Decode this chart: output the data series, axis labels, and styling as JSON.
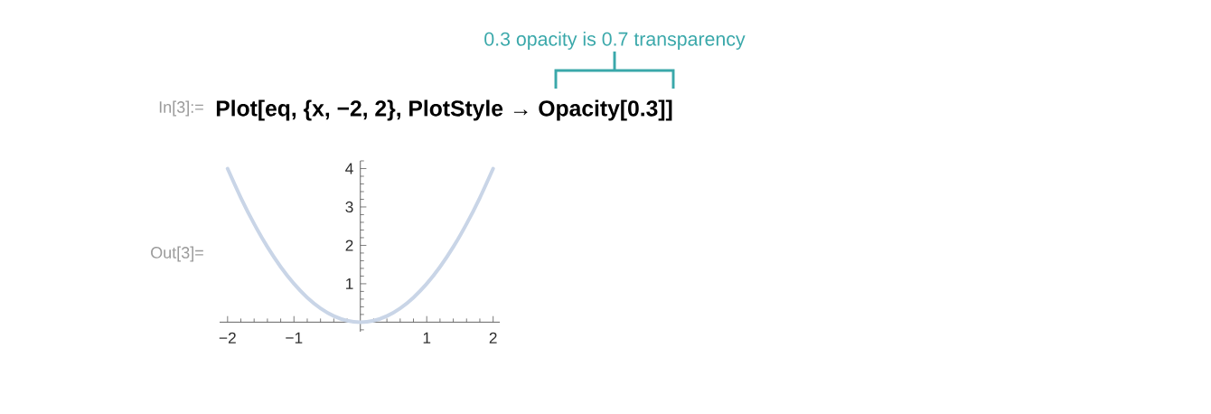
{
  "chart_data": {
    "type": "line",
    "x": [
      -2,
      -1.8,
      -1.6,
      -1.4,
      -1.2,
      -1,
      -0.8,
      -0.6,
      -0.4,
      -0.2,
      0,
      0.2,
      0.4,
      0.6,
      0.8,
      1,
      1.2,
      1.4,
      1.6,
      1.8,
      2
    ],
    "values": [
      4,
      3.24,
      2.56,
      1.96,
      1.44,
      1,
      0.64,
      0.36,
      0.16,
      0.04,
      0,
      0.04,
      0.16,
      0.36,
      0.64,
      1,
      1.44,
      1.96,
      2.56,
      3.24,
      4
    ],
    "color": "#c9d5e7",
    "xlim": [
      -2.12,
      2.1
    ],
    "ylim": [
      -0.25,
      4.2
    ],
    "xticks": [
      {
        "value": -2,
        "label": "−2"
      },
      {
        "value": -1,
        "label": "−1"
      },
      1,
      2
    ],
    "yticks": [
      1,
      2,
      3,
      4
    ],
    "annotations": [
      "0.3 opacity is 0.7 transparency",
      "In[3]:=",
      "Plot[eq, {x, −2, 2}, PlotStyle → Opacity[0.3]]",
      "Out[3]="
    ]
  }
}
